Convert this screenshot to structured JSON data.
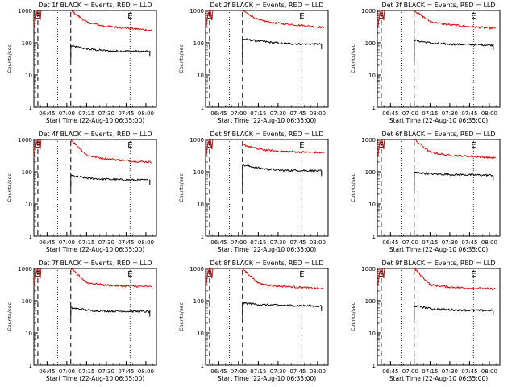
{
  "chart_data": [
    {
      "type": "line",
      "title": "Det 1f BLACK = Events, RED = LLD",
      "xlabel": "Start Time (22-Aug-10 06:35:00)",
      "ylabel": "Counts/sec",
      "yscale": "log",
      "ylim": [
        1,
        1000
      ],
      "xlim": [
        "06:35",
        "08:08"
      ],
      "x_ticks": [
        "06:45",
        "07:00",
        "07:15",
        "07:30",
        "07:45",
        "08:00"
      ],
      "y_ticks": [
        "1",
        "10",
        "100",
        "1000"
      ],
      "markers": {
        "start": "S",
        "end": "E"
      },
      "vlines": [
        {
          "time": "06:38",
          "style": "dashed"
        },
        {
          "time": "06:53",
          "style": "dotted"
        },
        {
          "time": "07:03",
          "style": "dashed"
        },
        {
          "time": "07:48",
          "style": "dotted"
        }
      ],
      "series": [
        {
          "name": "Events",
          "color": "#000000",
          "start_time": "07:03",
          "end_time": "08:03",
          "values": [
            80,
            62,
            55,
            55,
            53
          ]
        },
        {
          "name": "LLD",
          "color": "#e00000",
          "start_time": "07:03",
          "end_time": "08:05",
          "values": [
            1000,
            430,
            330,
            300,
            270,
            240
          ]
        }
      ]
    },
    {
      "type": "line",
      "title": "Det 2f BLACK = Events, RED = LLD",
      "xlabel": "Start Time (22-Aug-10 06:35:00)",
      "ylabel": "Counts/sec",
      "yscale": "log",
      "ylim": [
        1,
        1000
      ],
      "xlim": [
        "06:35",
        "08:08"
      ],
      "x_ticks": [
        "06:45",
        "07:00",
        "07:15",
        "07:30",
        "07:45",
        "08:00"
      ],
      "y_ticks": [
        "1",
        "10",
        "100",
        "1000"
      ],
      "markers": {
        "start": "S",
        "end": "E"
      },
      "vlines": [
        {
          "time": "06:38",
          "style": "dashed"
        },
        {
          "time": "06:53",
          "style": "dotted"
        },
        {
          "time": "07:03",
          "style": "dashed"
        },
        {
          "time": "07:48",
          "style": "dotted"
        }
      ],
      "series": [
        {
          "name": "Events",
          "color": "#000000",
          "start_time": "07:03",
          "end_time": "08:03",
          "values": [
            130,
            110,
            95,
            92,
            90
          ]
        },
        {
          "name": "LLD",
          "color": "#e00000",
          "start_time": "07:03",
          "end_time": "08:05",
          "values": [
            1000,
            500,
            410,
            370,
            330,
            300
          ]
        }
      ]
    },
    {
      "type": "line",
      "title": "Det 3f BLACK = Events, RED = LLD",
      "xlabel": "Start Time (22-Aug-10 06:35:00)",
      "ylabel": "Counts/sec",
      "yscale": "log",
      "ylim": [
        1,
        1000
      ],
      "xlim": [
        "06:35",
        "08:08"
      ],
      "x_ticks": [
        "06:45",
        "07:00",
        "07:15",
        "07:30",
        "07:45",
        "08:00"
      ],
      "y_ticks": [
        "1",
        "10",
        "100",
        "1000"
      ],
      "markers": {
        "start": "S",
        "end": "E"
      },
      "vlines": [
        {
          "time": "06:38",
          "style": "dashed"
        },
        {
          "time": "06:53",
          "style": "dotted"
        },
        {
          "time": "07:03",
          "style": "dashed"
        },
        {
          "time": "07:48",
          "style": "dotted"
        }
      ],
      "series": [
        {
          "name": "Events",
          "color": "#000000",
          "start_time": "07:03",
          "end_time": "08:03",
          "values": [
            120,
            95,
            90,
            88,
            85
          ]
        },
        {
          "name": "LLD",
          "color": "#e00000",
          "start_time": "07:03",
          "end_time": "08:05",
          "values": [
            1000,
            450,
            370,
            330,
            300,
            280
          ]
        }
      ]
    },
    {
      "type": "line",
      "title": "Det 4f BLACK = Events, RED = LLD",
      "xlabel": "Start Time (22-Aug-10 06:35:00)",
      "ylabel": "Counts/sec",
      "yscale": "log",
      "ylim": [
        1,
        1000
      ],
      "xlim": [
        "06:35",
        "08:08"
      ],
      "x_ticks": [
        "06:45",
        "07:00",
        "07:15",
        "07:30",
        "07:45",
        "08:00"
      ],
      "y_ticks": [
        "1",
        "10",
        "100",
        "1000"
      ],
      "markers": {
        "start": "S",
        "end": "E"
      },
      "vlines": [
        {
          "time": "06:38",
          "style": "dashed"
        },
        {
          "time": "06:53",
          "style": "dotted"
        },
        {
          "time": "07:03",
          "style": "dashed"
        },
        {
          "time": "07:48",
          "style": "dotted"
        }
      ],
      "series": [
        {
          "name": "Events",
          "color": "#000000",
          "start_time": "07:03",
          "end_time": "08:03",
          "values": [
            75,
            62,
            58,
            56,
            55
          ]
        },
        {
          "name": "LLD",
          "color": "#e00000",
          "start_time": "07:03",
          "end_time": "08:05",
          "values": [
            1000,
            320,
            260,
            230,
            210,
            200
          ]
        }
      ]
    },
    {
      "type": "line",
      "title": "Det 5f BLACK = Events, RED = LLD",
      "xlabel": "Start Time (22-Aug-10 06:35:00)",
      "ylabel": "Counts/sec",
      "yscale": "log",
      "ylim": [
        1,
        1000
      ],
      "xlim": [
        "06:35",
        "08:08"
      ],
      "x_ticks": [
        "06:45",
        "07:00",
        "07:15",
        "07:30",
        "07:45",
        "08:00"
      ],
      "y_ticks": [
        "1",
        "10",
        "100",
        "1000"
      ],
      "markers": {
        "start": "S",
        "end": "E"
      },
      "vlines": [
        {
          "time": "06:38",
          "style": "dashed"
        },
        {
          "time": "06:53",
          "style": "dotted"
        },
        {
          "time": "07:03",
          "style": "dashed"
        },
        {
          "time": "07:48",
          "style": "dotted"
        }
      ],
      "series": [
        {
          "name": "Events",
          "color": "#000000",
          "start_time": "07:03",
          "end_time": "08:03",
          "values": [
            160,
            125,
            110,
            110,
            105
          ]
        },
        {
          "name": "LLD",
          "color": "#e00000",
          "start_time": "07:03",
          "end_time": "08:05",
          "values": [
            700,
            500,
            440,
            420,
            400,
            390
          ]
        }
      ]
    },
    {
      "type": "line",
      "title": "Det 6f BLACK = Events, RED = LLD",
      "xlabel": "Start Time (22-Aug-10 06:35:00)",
      "ylabel": "Counts/sec",
      "yscale": "log",
      "ylim": [
        1,
        1000
      ],
      "xlim": [
        "06:35",
        "08:08"
      ],
      "x_ticks": [
        "06:45",
        "07:00",
        "07:15",
        "07:30",
        "07:45",
        "08:00"
      ],
      "y_ticks": [
        "1",
        "10",
        "100",
        "1000"
      ],
      "markers": {
        "start": "S",
        "end": "E"
      },
      "vlines": [
        {
          "time": "06:38",
          "style": "dashed"
        },
        {
          "time": "06:53",
          "style": "dotted"
        },
        {
          "time": "07:03",
          "style": "dashed"
        },
        {
          "time": "07:48",
          "style": "dotted"
        }
      ],
      "series": [
        {
          "name": "Events",
          "color": "#000000",
          "start_time": "07:03",
          "end_time": "08:03",
          "values": [
            95,
            85,
            82,
            80,
            78
          ]
        },
        {
          "name": "LLD",
          "color": "#e00000",
          "start_time": "07:03",
          "end_time": "08:05",
          "values": [
            1000,
            400,
            330,
            310,
            290,
            270
          ]
        }
      ]
    },
    {
      "type": "line",
      "title": "Det 7f BLACK = Events, RED = LLD",
      "xlabel": "Start Time (22-Aug-10 06:35:00)",
      "ylabel": "Counts/sec",
      "yscale": "log",
      "ylim": [
        1,
        1000
      ],
      "xlim": [
        "06:35",
        "08:08"
      ],
      "x_ticks": [
        "06:45",
        "07:00",
        "07:15",
        "07:30",
        "07:45",
        "08:00"
      ],
      "y_ticks": [
        "1",
        "10",
        "100",
        "1000"
      ],
      "markers": {
        "start": "S",
        "end": "E"
      },
      "vlines": [
        {
          "time": "06:38",
          "style": "dashed"
        },
        {
          "time": "06:53",
          "style": "dotted"
        },
        {
          "time": "07:03",
          "style": "dashed"
        },
        {
          "time": "07:48",
          "style": "dotted"
        }
      ],
      "series": [
        {
          "name": "Events",
          "color": "#000000",
          "start_time": "07:03",
          "end_time": "08:03",
          "values": [
            60,
            50,
            48,
            47,
            46
          ]
        },
        {
          "name": "LLD",
          "color": "#e00000",
          "start_time": "07:03",
          "end_time": "08:05",
          "values": [
            1000,
            360,
            310,
            290,
            280,
            270
          ]
        }
      ]
    },
    {
      "type": "line",
      "title": "Det 8f BLACK = Events, RED = LLD",
      "xlabel": "Start Time (22-Aug-10 06:35:00)",
      "ylabel": "Counts/sec",
      "yscale": "log",
      "ylim": [
        1,
        1000
      ],
      "xlim": [
        "06:35",
        "08:08"
      ],
      "x_ticks": [
        "06:45",
        "07:00",
        "07:15",
        "07:30",
        "07:45",
        "08:00"
      ],
      "y_ticks": [
        "1",
        "10",
        "100",
        "1000"
      ],
      "markers": {
        "start": "S",
        "end": "E"
      },
      "vlines": [
        {
          "time": "06:38",
          "style": "dashed"
        },
        {
          "time": "06:53",
          "style": "dotted"
        },
        {
          "time": "07:03",
          "style": "dashed"
        },
        {
          "time": "07:48",
          "style": "dotted"
        }
      ],
      "series": [
        {
          "name": "Events",
          "color": "#000000",
          "start_time": "07:03",
          "end_time": "08:03",
          "values": [
            85,
            75,
            72,
            70,
            68
          ]
        },
        {
          "name": "LLD",
          "color": "#e00000",
          "start_time": "07:03",
          "end_time": "08:05",
          "values": [
            1000,
            340,
            290,
            270,
            250,
            230
          ]
        }
      ]
    },
    {
      "type": "line",
      "title": "Det 9f BLACK = Events, RED = LLD",
      "xlabel": "Start Time (22-Aug-10 06:35:00)",
      "ylabel": "Counts/sec",
      "yscale": "log",
      "ylim": [
        1,
        1000
      ],
      "xlim": [
        "06:35",
        "08:08"
      ],
      "x_ticks": [
        "06:45",
        "07:00",
        "07:15",
        "07:30",
        "07:45",
        "08:00"
      ],
      "y_ticks": [
        "1",
        "10",
        "100",
        "1000"
      ],
      "markers": {
        "start": "S",
        "end": "E"
      },
      "vlines": [
        {
          "time": "06:38",
          "style": "dashed"
        },
        {
          "time": "06:53",
          "style": "dotted"
        },
        {
          "time": "07:03",
          "style": "dashed"
        },
        {
          "time": "07:48",
          "style": "dotted"
        }
      ],
      "series": [
        {
          "name": "Events",
          "color": "#000000",
          "start_time": "07:03",
          "end_time": "08:03",
          "values": [
            70,
            55,
            52,
            50,
            50
          ]
        },
        {
          "name": "LLD",
          "color": "#e00000",
          "start_time": "07:03",
          "end_time": "08:05",
          "values": [
            1000,
            310,
            270,
            250,
            240,
            230
          ]
        }
      ]
    }
  ]
}
